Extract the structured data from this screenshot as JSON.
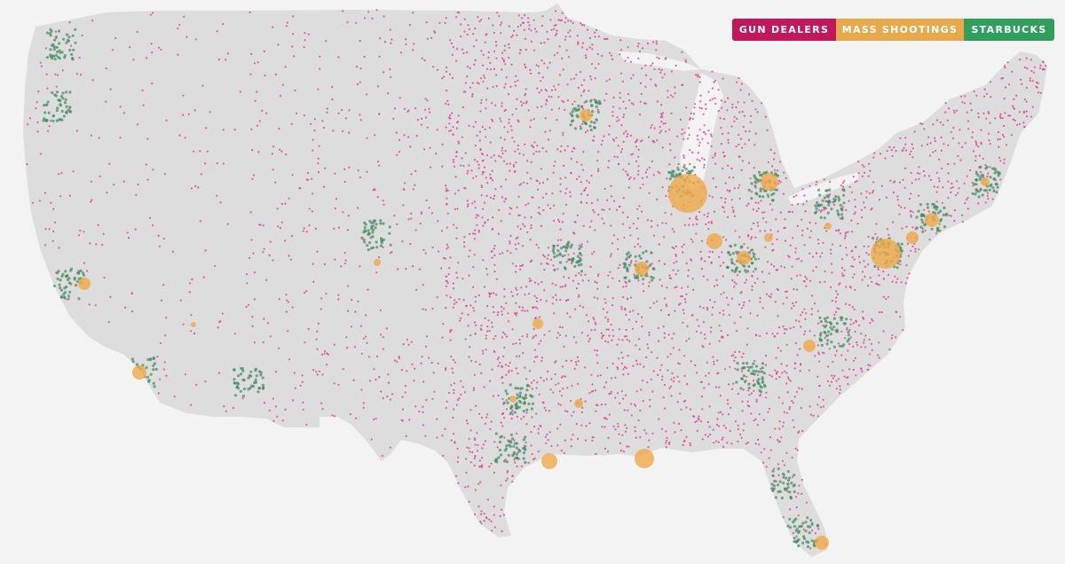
{
  "legend": {
    "items": [
      {
        "key": "gun_dealers",
        "label": "GUN DEALERS",
        "color": "#c2185b"
      },
      {
        "key": "mass_shootings",
        "label": "MASS SHOOTINGS",
        "color": "#e8a94c"
      },
      {
        "key": "starbucks",
        "label": "STARBUCKS",
        "color": "#2fa05c"
      }
    ]
  },
  "map": {
    "land_color": "#dddddd",
    "background_color": "#f3f3f3",
    "dot_colors": {
      "gun_dealers": "#e0439a",
      "mass_shootings": "#f0a94a",
      "starbucks": "#3f8a5c"
    }
  }
}
